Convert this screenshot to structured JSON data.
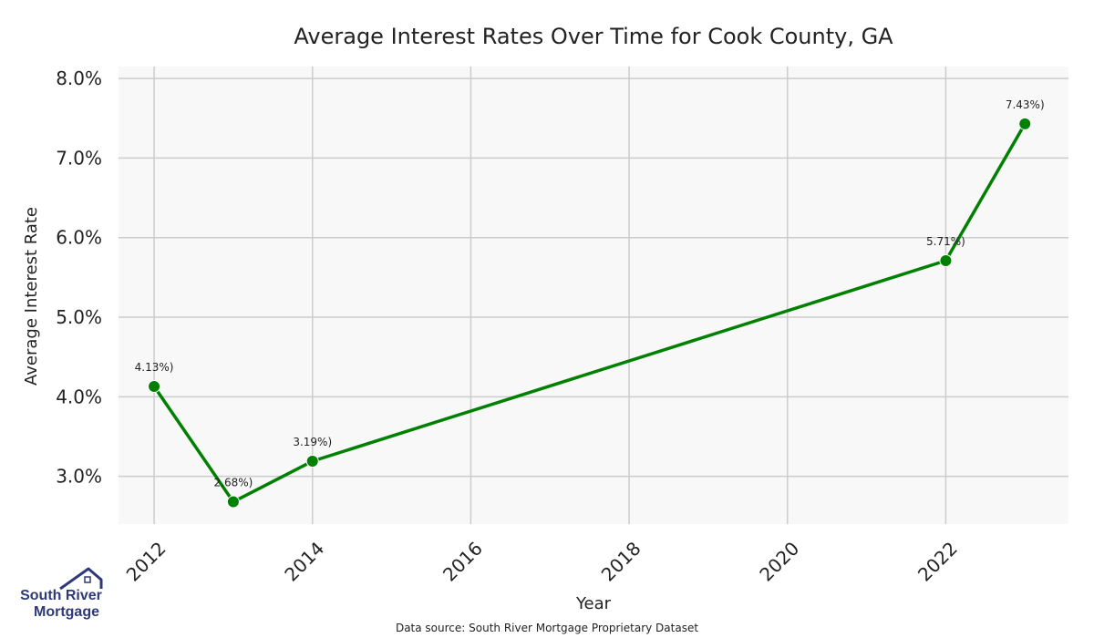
{
  "chart_data": {
    "type": "line",
    "title": "Average Interest Rates Over Time for Cook County, GA",
    "xlabel": "Year",
    "ylabel": "Average Interest Rate",
    "x": [
      2012,
      2013,
      2014,
      2022,
      2023
    ],
    "series": [
      {
        "values": [
          4.13,
          2.68,
          3.19,
          5.71,
          7.43
        ]
      }
    ],
    "point_labels": [
      "4.13%)",
      "2.68%)",
      "3.19%)",
      "5.71%)",
      "7.43%)"
    ],
    "xticks": [
      2012,
      2014,
      2016,
      2018,
      2020,
      2022
    ],
    "xtick_labels": [
      "2012",
      "2014",
      "2016",
      "2018",
      "2020",
      "2022"
    ],
    "yticks": [
      3,
      4,
      5,
      6,
      7,
      8
    ],
    "ytick_labels": [
      "3.0%",
      "4.0%",
      "5.0%",
      "6.0%",
      "7.0%",
      "8.0%"
    ],
    "xlim": [
      2011.55,
      2023.55
    ],
    "ylim": [
      2.4,
      8.15
    ],
    "grid": true,
    "colors": {
      "line": "#008000",
      "plot_bg": "#f8f8f8",
      "grid": "#cccccc"
    }
  },
  "source": "Data source: South River Mortgage Proprietary Dataset",
  "logo": {
    "line1": "South River",
    "line2": "Mortgage"
  }
}
